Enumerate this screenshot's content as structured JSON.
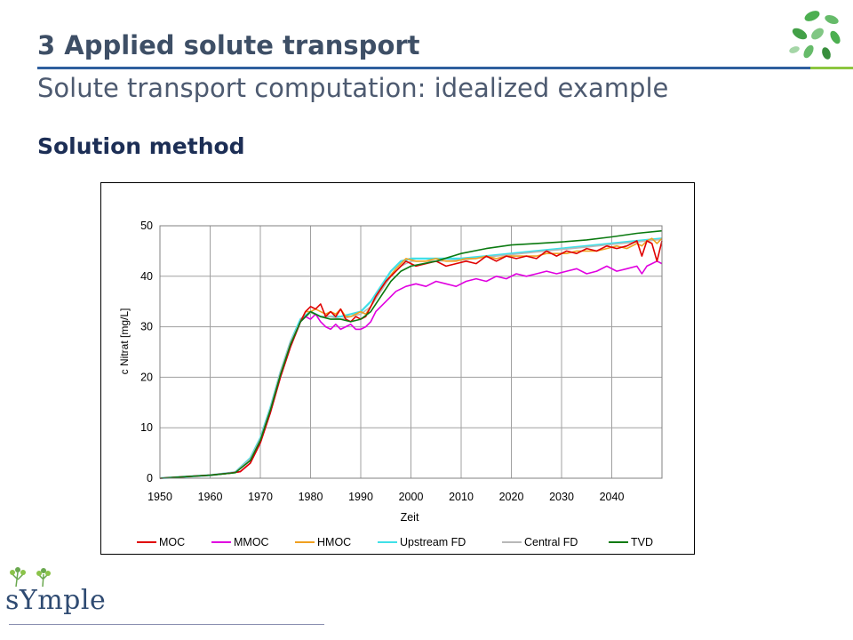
{
  "header": {
    "title": "3  Applied solute transport",
    "subtitle": "Solute transport computation: idealized example"
  },
  "section": {
    "title": "Solution method"
  },
  "brand": {
    "wordmark": "sYmple"
  },
  "colors": {
    "title": "#3e4f66",
    "rule_blue": "#2e5f9e",
    "rule_green": "#8cc63f",
    "leaf_green": "#4caf50"
  },
  "icons": [
    "leaves-logo-icon",
    "tree-logo-icon"
  ],
  "chart_data": {
    "type": "line",
    "title": "",
    "xlabel": "Zeit",
    "ylabel": "c Nitrat [mg/L]",
    "xlim": [
      1950,
      2050
    ],
    "ylim": [
      0,
      50
    ],
    "xticks": [
      1950,
      1960,
      1970,
      1980,
      1990,
      2000,
      2010,
      2020,
      2030,
      2040
    ],
    "yticks": [
      0,
      10,
      20,
      30,
      40,
      50
    ],
    "grid": true,
    "legend": "bottom",
    "series": [
      {
        "name": "MOC",
        "color": "#e00000",
        "x": [
          1950,
          1960,
          1964,
          1966,
          1968,
          1970,
          1972,
          1974,
          1976,
          1978,
          1979,
          1980,
          1981,
          1982,
          1983,
          1984,
          1985,
          1986,
          1987,
          1988,
          1989,
          1990,
          1991,
          1992,
          1993,
          1995,
          1997,
          1999,
          2001,
          2003,
          2005,
          2007,
          2009,
          2011,
          2013,
          2015,
          2017,
          2019,
          2021,
          2023,
          2025,
          2027,
          2029,
          2031,
          2033,
          2035,
          2037,
          2039,
          2041,
          2043,
          2045,
          2046,
          2047,
          2048,
          2049,
          2050
        ],
        "y": [
          0,
          0.6,
          1,
          1.3,
          3,
          7,
          13,
          20,
          26,
          31,
          33,
          34,
          33.5,
          34.5,
          32,
          33,
          32,
          33.5,
          31.5,
          31,
          32,
          31.5,
          32,
          34,
          36,
          39,
          41,
          43,
          42,
          42.5,
          43,
          42,
          42.5,
          43,
          42.5,
          44,
          43,
          44,
          43.5,
          44,
          43.5,
          45,
          44,
          45,
          44.5,
          45.5,
          45,
          46,
          45.5,
          46,
          47,
          44,
          47,
          46.5,
          43,
          47
        ]
      },
      {
        "name": "MMOC",
        "color": "#e000e0",
        "x": [
          1950,
          1960,
          1964,
          1966,
          1968,
          1970,
          1972,
          1974,
          1976,
          1978,
          1979,
          1980,
          1981,
          1982,
          1983,
          1984,
          1985,
          1986,
          1987,
          1988,
          1989,
          1990,
          1991,
          1992,
          1993,
          1995,
          1997,
          1999,
          2001,
          2003,
          2005,
          2007,
          2009,
          2011,
          2013,
          2015,
          2017,
          2019,
          2021,
          2023,
          2025,
          2027,
          2029,
          2031,
          2033,
          2035,
          2037,
          2039,
          2041,
          2043,
          2045,
          2046,
          2047,
          2048,
          2049,
          2050
        ],
        "y": [
          0,
          0.6,
          1,
          1.3,
          3,
          7,
          13,
          20,
          26,
          31,
          32,
          31.5,
          32.5,
          31,
          30,
          29.5,
          30.5,
          29.5,
          30,
          30.5,
          29.5,
          29.5,
          30,
          31,
          33,
          35,
          37,
          38,
          38.5,
          38,
          39,
          38.5,
          38,
          39,
          39.5,
          39,
          40,
          39.5,
          40.5,
          40,
          40.5,
          41,
          40.5,
          41,
          41.5,
          40.5,
          41,
          42,
          41,
          41.5,
          42,
          40.5,
          42,
          42.5,
          43,
          42.5
        ]
      },
      {
        "name": "HMOC",
        "color": "#f0a020",
        "x": [
          1950,
          1960,
          1964,
          1966,
          1968,
          1970,
          1972,
          1974,
          1976,
          1978,
          1979,
          1980,
          1981,
          1982,
          1983,
          1984,
          1985,
          1986,
          1987,
          1988,
          1989,
          1990,
          1991,
          1992,
          1993,
          1995,
          1997,
          1999,
          2001,
          2003,
          2005,
          2007,
          2009,
          2011,
          2013,
          2015,
          2017,
          2019,
          2021,
          2023,
          2025,
          2027,
          2029,
          2031,
          2033,
          2035,
          2037,
          2039,
          2041,
          2043,
          2045,
          2046,
          2047,
          2048,
          2049,
          2050
        ],
        "y": [
          0,
          0.6,
          1,
          1.3,
          3,
          7,
          13,
          20,
          26,
          31,
          33,
          33,
          33.5,
          33,
          32.5,
          33,
          32.5,
          33.5,
          32,
          32,
          32.5,
          33,
          32.5,
          34,
          36,
          39,
          41.5,
          43.5,
          43,
          43,
          43.5,
          43,
          43,
          43.5,
          43.5,
          44,
          43.5,
          44,
          44,
          44,
          44,
          44.5,
          44.5,
          44.5,
          45,
          45,
          45,
          45.5,
          46,
          45.5,
          46.5,
          46,
          47,
          47.5,
          46.5,
          47.5
        ]
      },
      {
        "name": "Upstream FD",
        "color": "#40e0e8",
        "x": [
          1950,
          1960,
          1965,
          1968,
          1970,
          1972,
          1974,
          1976,
          1978,
          1980,
          1982,
          1984,
          1986,
          1988,
          1990,
          1992,
          1994,
          1996,
          1998,
          2000,
          2005,
          2010,
          2015,
          2020,
          2025,
          2030,
          2035,
          2040,
          2045,
          2050
        ],
        "y": [
          0,
          0.6,
          1.2,
          4,
          8,
          14,
          21,
          27,
          31.5,
          33,
          32,
          32,
          32,
          32.5,
          33,
          35,
          38,
          41,
          43,
          43.5,
          43.5,
          43.5,
          44,
          44.5,
          45,
          45.5,
          46,
          46.5,
          47,
          47.5
        ]
      },
      {
        "name": "Central FD",
        "color": "#b8b8b8",
        "x": [
          1950,
          1960,
          1965,
          1968,
          1970,
          1972,
          1974,
          1976,
          1978,
          1980,
          1982,
          1984,
          1986,
          1988,
          1990,
          1992,
          1994,
          1996,
          1998,
          2000,
          2005,
          2010,
          2015,
          2020,
          2025,
          2030,
          2035,
          2040,
          2045,
          2050
        ],
        "y": [
          0,
          0.6,
          1.2,
          3.8,
          7.8,
          13.8,
          21,
          27,
          31,
          32.8,
          32,
          32,
          31.5,
          32,
          32.5,
          34,
          37,
          40,
          42,
          43,
          43,
          43.2,
          43.8,
          44.3,
          44.8,
          45.3,
          45.8,
          46.3,
          46.8,
          47.3
        ]
      },
      {
        "name": "TVD",
        "color": "#0a7a10",
        "x": [
          1950,
          1960,
          1965,
          1968,
          1970,
          1972,
          1974,
          1976,
          1978,
          1980,
          1982,
          1984,
          1986,
          1988,
          1990,
          1992,
          1994,
          1996,
          1998,
          2000,
          2005,
          2010,
          2015,
          2020,
          2025,
          2030,
          2035,
          2040,
          2045,
          2050
        ],
        "y": [
          0,
          0.6,
          1.1,
          3.5,
          7.5,
          13.5,
          20.5,
          26.5,
          31,
          33,
          32,
          31.5,
          31.5,
          31,
          31.5,
          33,
          36,
          39,
          41,
          42,
          43,
          44.5,
          45.5,
          46.2,
          46.5,
          46.8,
          47.2,
          47.8,
          48.5,
          49
        ]
      }
    ]
  }
}
